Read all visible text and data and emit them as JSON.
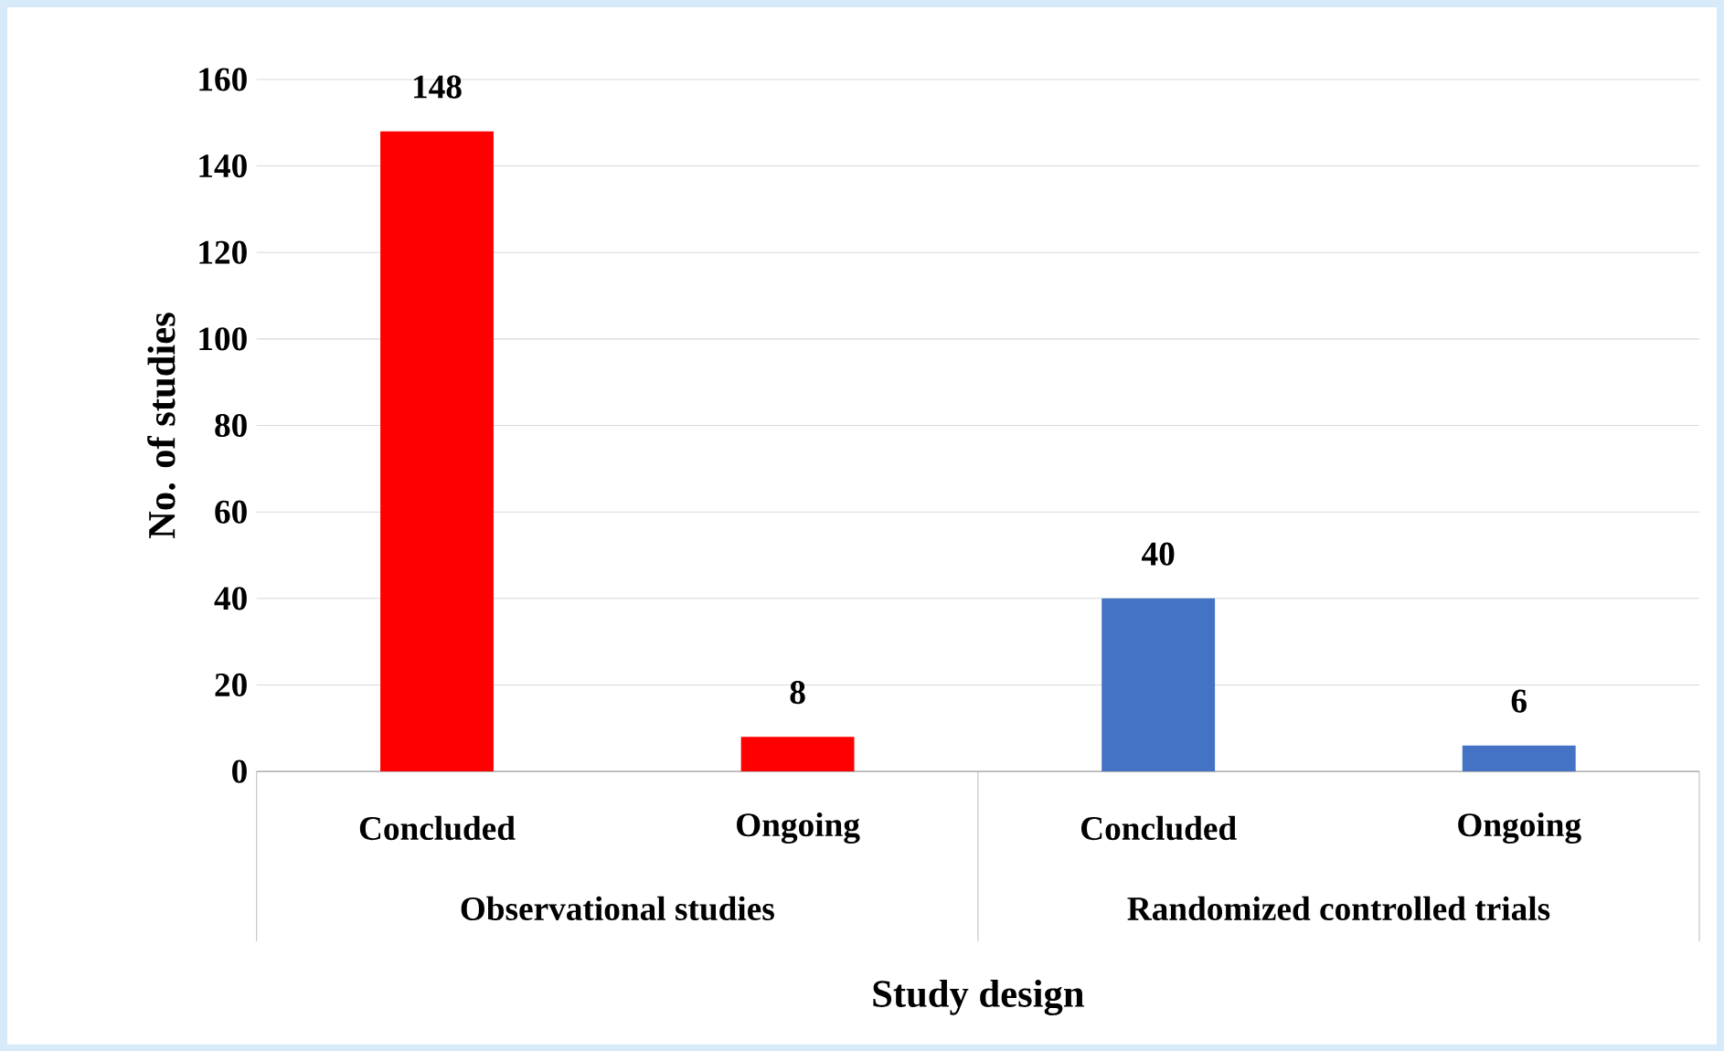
{
  "chart_data": {
    "type": "bar",
    "xlabel": "Study design",
    "ylabel": "No. of studies",
    "categories": [
      "Concluded",
      "Ongoing",
      "Concluded",
      "Ongoing"
    ],
    "values": [
      148,
      8,
      40,
      6
    ],
    "colors": [
      "#ff0000",
      "#ff0000",
      "#4472c4",
      "#4472c4"
    ],
    "annotations": [
      "Observational studies",
      "Randomized controlled trials"
    ],
    "ylim": [
      0,
      160
    ],
    "yticks": [
      0,
      20,
      40,
      60,
      80,
      100,
      120,
      140,
      160
    ],
    "grid": "y",
    "data_labels": true
  }
}
